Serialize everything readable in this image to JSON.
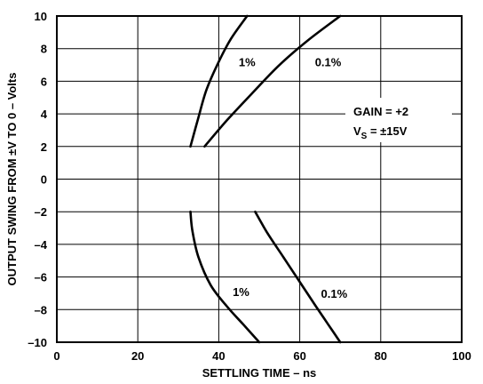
{
  "chart_data": {
    "type": "line",
    "xlabel": "SETTLING TIME – ns",
    "ylabel": "OUTPUT SWING FROM ±V TO 0 – Volts",
    "xlim": [
      0,
      100
    ],
    "ylim": [
      -10,
      10
    ],
    "x_ticks": [
      "0",
      "20",
      "40",
      "60",
      "80",
      "100"
    ],
    "y_ticks": [
      "10",
      "8",
      "6",
      "4",
      "2",
      "0",
      "–2",
      "–4",
      "–6",
      "–8",
      "–10"
    ],
    "grid": true,
    "annotation": {
      "line1": "GAIN = +2",
      "line2_prefix": "V",
      "line2_sub": "S",
      "line2_suffix": " = ±15V"
    },
    "series": [
      {
        "name": "1%",
        "x": [
          33,
          35,
          37,
          40,
          43,
          47
        ],
        "y": [
          2,
          3.8,
          5.5,
          7.2,
          8.6,
          10
        ]
      },
      {
        "name": "0.1%",
        "x": [
          36.5,
          42,
          48,
          55,
          62,
          70
        ],
        "y": [
          2,
          3.6,
          5.2,
          7,
          8.5,
          10
        ]
      },
      {
        "name": "1%",
        "x": [
          33,
          33.5,
          35,
          38,
          42,
          46,
          50
        ],
        "y": [
          -2,
          -3.2,
          -4.8,
          -6.5,
          -7.8,
          -8.9,
          -10
        ]
      },
      {
        "name": "0.1%",
        "x": [
          49,
          52,
          56,
          60,
          64,
          67,
          70
        ],
        "y": [
          -2,
          -3.3,
          -4.8,
          -6.3,
          -7.8,
          -8.9,
          -10
        ]
      }
    ],
    "series_labels": [
      {
        "text": "1%",
        "x": 47,
        "y": 7.2
      },
      {
        "text": "0.1%",
        "x": 67,
        "y": 7.2
      },
      {
        "text": "1%",
        "x": 45.5,
        "y": -6.9
      },
      {
        "text": "0.1%",
        "x": 68.5,
        "y": -7.0
      }
    ]
  }
}
